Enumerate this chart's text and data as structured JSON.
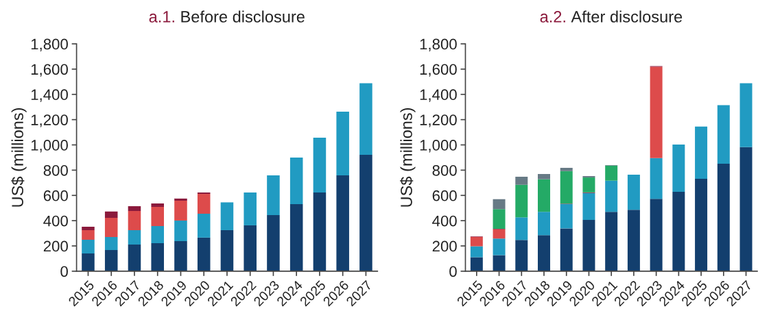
{
  "chart_data": [
    {
      "type": "bar",
      "title": "a.1. Before disclosure",
      "ylabel": "US$ (millions)",
      "stacked": true,
      "categories": [
        "2015",
        "2016",
        "2017",
        "2018",
        "2019",
        "2020",
        "2021",
        "2022",
        "2023",
        "2024",
        "2025",
        "2026",
        "2027"
      ],
      "ylim": [
        0,
        1800
      ],
      "yticks": [
        0,
        {
          "value": 200,
          "label": "200"
        },
        {
          "value": 400,
          "label": "400"
        },
        {
          "value": 600,
          "label": "600"
        },
        {
          "value": 800,
          "label": "800"
        },
        {
          "value": 1000,
          "label": "1,000"
        },
        {
          "value": 1200,
          "label": "1,200"
        },
        {
          "value": 1400,
          "label": "1,400"
        },
        {
          "value": 1600,
          "label": "1,600"
        },
        {
          "value": 1800,
          "label": "1,800"
        }
      ],
      "grid": false,
      "series": [
        {
          "color": "#133f6e",
          "values": [
            141,
            168,
            211,
            222,
            238,
            266,
            325,
            363,
            444,
            531,
            623,
            759,
            921
          ]
        },
        {
          "color": "#219bc2",
          "values": [
            108,
            103,
            114,
            136,
            163,
            189,
            220,
            260,
            315,
            369,
            434,
            504,
            567
          ]
        },
        {
          "color": "#dd4b4b",
          "values": [
            76,
            152,
            152,
            151,
            157,
            157,
            null,
            null,
            null,
            null,
            null,
            null,
            null
          ]
        },
        {
          "color": "#8b1a3c",
          "values": [
            27,
            49,
            38,
            28,
            17,
            11,
            null,
            null,
            null,
            null,
            null,
            null,
            null
          ]
        }
      ]
    },
    {
      "type": "bar",
      "title": "a.2. After disclosure",
      "ylabel": "US$ (millions)",
      "stacked": true,
      "categories": [
        "2015",
        "2016",
        "2017",
        "2018",
        "2019",
        "2020",
        "2021",
        "2022",
        "2023",
        "2024",
        "2025",
        "2026",
        "2027"
      ],
      "ylim": [
        0,
        1800
      ],
      "yticks": [
        0,
        {
          "value": 200,
          "label": "200"
        },
        {
          "value": 400,
          "label": "400"
        },
        {
          "value": 600,
          "label": "600"
        },
        {
          "value": 800,
          "label": "800"
        },
        {
          "value": 1000,
          "label": "1,000"
        },
        {
          "value": 1200,
          "label": "1,200"
        },
        {
          "value": 1400,
          "label": "1,400"
        },
        {
          "value": 1600,
          "label": "1,600"
        },
        {
          "value": 1800,
          "label": "1,800"
        }
      ],
      "grid": false,
      "series": [
        {
          "color": "#133f6e",
          "values": [
            111,
            127,
            247,
            285,
            339,
            406,
            470,
            486,
            573,
            628,
            731,
            851,
            982
          ]
        },
        {
          "color": "#219bc2",
          "values": [
            87,
            132,
            179,
            185,
            193,
            213,
            247,
            278,
            322,
            375,
            414,
            463,
            506
          ]
        },
        {
          "color": "#dd4b4b",
          "values": [
            72,
            73,
            null,
            null,
            null,
            null,
            null,
            null,
            724,
            null,
            null,
            null,
            null
          ]
        },
        {
          "color": "#8b1a3c",
          "values": [
            4,
            4,
            null,
            null,
            3,
            5,
            null,
            null,
            5,
            null,
            null,
            null,
            null
          ]
        },
        {
          "color": "#24aa66",
          "values": [
            null,
            156,
            258,
            258,
            258,
            118,
            119,
            null,
            null,
            null,
            null,
            null,
            null
          ]
        },
        {
          "color": "#677a85",
          "values": [
            null,
            78,
            64,
            41,
            25,
            11,
            4,
            null,
            null,
            null,
            null,
            null,
            null
          ]
        }
      ]
    }
  ]
}
